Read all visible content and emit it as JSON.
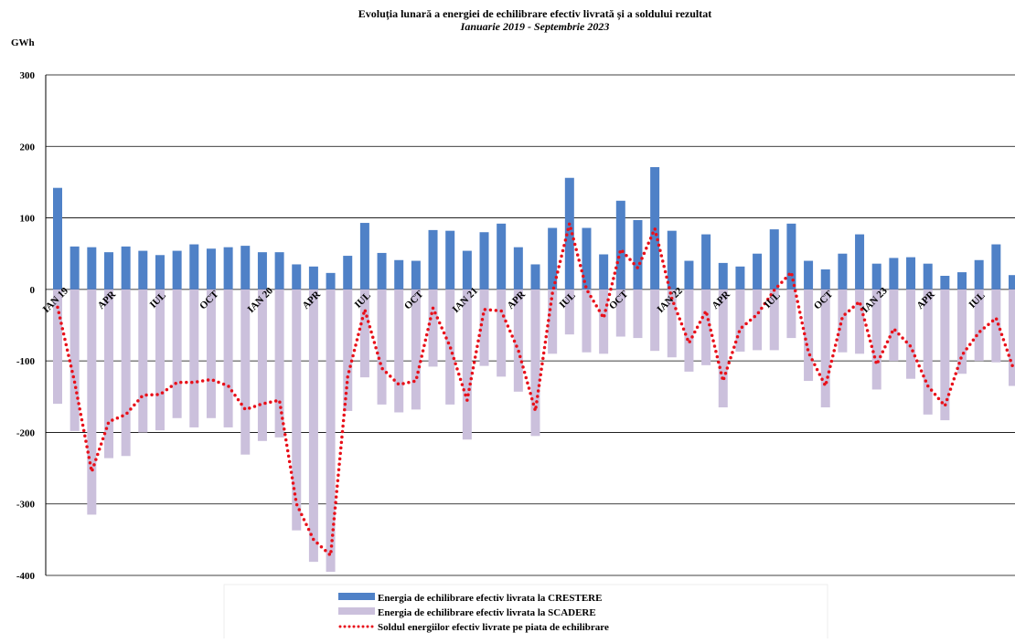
{
  "chart_data": {
    "type": "bar",
    "title": "Evoluția lunară a energiei de echilibrare efectiv livrată și a soldului rezultat",
    "subtitle": "Ianuarie 2019 - Septembrie 2023",
    "y_label": "GWh",
    "categories": [
      "IAN 19",
      null,
      null,
      "APR",
      null,
      null,
      "IUL",
      null,
      null,
      "OCT",
      null,
      null,
      "IAN 20",
      null,
      null,
      "APR",
      null,
      null,
      "IUL",
      null,
      null,
      "OCT",
      null,
      null,
      "IAN 21",
      null,
      null,
      "APR",
      null,
      null,
      "IUL",
      null,
      null,
      "OCT",
      null,
      null,
      "IAN 22",
      null,
      null,
      "APR",
      null,
      null,
      "IUL",
      null,
      null,
      "OCT",
      null,
      null,
      "IAN 23",
      null,
      null,
      "APR",
      null,
      null,
      "IUL",
      null,
      null
    ],
    "series": [
      {
        "name": "Energia de echilibrare efectiv livrata la CRESTERE",
        "type": "bar",
        "color": "#4f81c7",
        "values": [
          142,
          60,
          59,
          52,
          60,
          54,
          48,
          54,
          63,
          57,
          59,
          61,
          52,
          52,
          35,
          32,
          23,
          47,
          93,
          51,
          41,
          40,
          83,
          82,
          54,
          80,
          92,
          59,
          35,
          86,
          156,
          86,
          49,
          124,
          97,
          171,
          82,
          40,
          77,
          37,
          32,
          50,
          84,
          92,
          40,
          28,
          50,
          77,
          36,
          44,
          45,
          36,
          19,
          24,
          41,
          63,
          20
        ]
      },
      {
        "name": "Energia de echilibrare efectiv livrata la SCADERE",
        "type": "bar",
        "color": "#cbc0dc",
        "values": [
          -160,
          -198,
          -315,
          -236,
          -233,
          -200,
          -197,
          -180,
          -193,
          -180,
          -193,
          -231,
          -212,
          -207,
          -337,
          -381,
          -395,
          -170,
          -123,
          -161,
          -172,
          -168,
          -108,
          -161,
          -210,
          -107,
          -122,
          -143,
          -205,
          -90,
          -63,
          -88,
          -90,
          -66,
          -68,
          -86,
          -95,
          -115,
          -106,
          -165,
          -87,
          -85,
          -85,
          -68,
          -128,
          -165,
          -88,
          -90,
          -140,
          -100,
          -125,
          -175,
          -183,
          -118,
          -100,
          -102,
          -135
        ]
      },
      {
        "name": "Soldul energiilor efectiv livrate pe piata de echilibrare",
        "type": "line",
        "color": "#e8101a",
        "values": [
          -25,
          -130,
          -255,
          -185,
          -175,
          -148,
          -147,
          -130,
          -130,
          -126,
          -135,
          -168,
          -160,
          -155,
          -300,
          -350,
          -372,
          -122,
          -28,
          -110,
          -133,
          -128,
          -26,
          -80,
          -155,
          -28,
          -30,
          -85,
          -170,
          -5,
          92,
          0,
          -40,
          56,
          30,
          85,
          -13,
          -75,
          -30,
          -128,
          -55,
          -35,
          -1,
          24,
          -88,
          -135,
          -38,
          -17,
          -105,
          -55,
          -80,
          -135,
          -163,
          -92,
          -60,
          -40,
          -110
        ]
      }
    ],
    "ylim": [
      -400,
      300
    ],
    "yticks": [
      -400,
      -300,
      -200,
      -100,
      0,
      100,
      200,
      300
    ],
    "grid": true
  }
}
